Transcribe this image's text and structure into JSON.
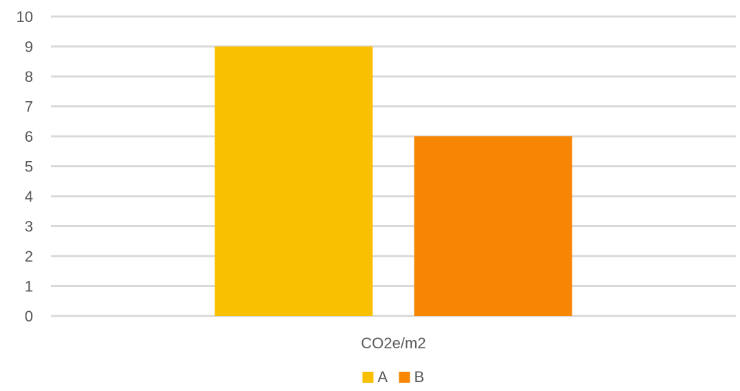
{
  "chart_data": {
    "type": "bar",
    "categories": [
      "CO2e/m2"
    ],
    "series": [
      {
        "name": "A",
        "values": [
          9
        ],
        "color": "#F8C000"
      },
      {
        "name": "B",
        "values": [
          6
        ],
        "color": "#F78605"
      }
    ],
    "title": "",
    "xlabel": "",
    "ylabel": "",
    "ylim": [
      0,
      10
    ],
    "yticks": [
      "0",
      "1",
      "2",
      "3",
      "4",
      "5",
      "6",
      "7",
      "8",
      "9",
      "10"
    ],
    "grid": true,
    "legend_position": "bottom",
    "gridline_color": "#D9D9D9",
    "text_color": "#595959"
  }
}
